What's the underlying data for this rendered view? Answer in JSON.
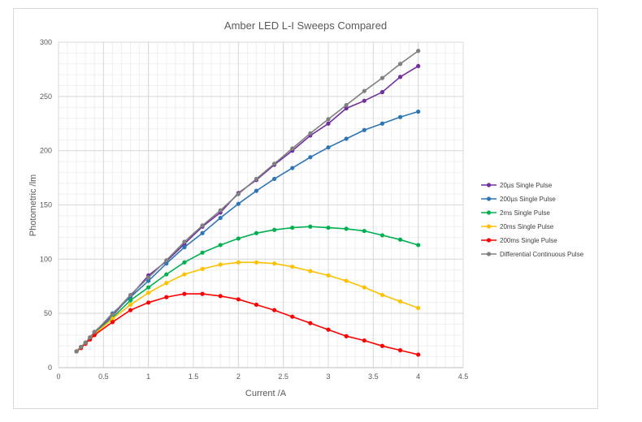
{
  "chart_data": {
    "type": "line",
    "title": "Amber LED L-I Sweeps Compared",
    "xlabel": "Current /A",
    "ylabel": "Photometric /lm",
    "xlim": [
      0,
      4.5
    ],
    "ylim": [
      0,
      300
    ],
    "x_ticks": [
      "0",
      "0.5",
      "1",
      "1.5",
      "2",
      "2.5",
      "3",
      "3.5",
      "4",
      "4.5"
    ],
    "y_ticks": [
      "0",
      "50",
      "100",
      "150",
      "200",
      "250",
      "300"
    ],
    "grid": true,
    "legend_position": "right",
    "series": [
      {
        "name": "20µs Single Pulse",
        "color": "#7030a0",
        "x": [
          0.2,
          0.25,
          0.3,
          0.35,
          0.4,
          0.6,
          0.8,
          1.0,
          1.2,
          1.4,
          1.6,
          1.8,
          2.0,
          2.2,
          2.4,
          2.6,
          2.8,
          3.0,
          3.2,
          3.4,
          3.6,
          3.8,
          4.0
        ],
        "y": [
          15,
          19,
          23,
          27,
          32,
          48,
          66,
          85,
          98,
          114,
          130,
          143,
          161,
          173,
          187,
          200,
          214,
          225,
          239,
          246,
          254,
          268,
          278
        ]
      },
      {
        "name": "200µs Single Pulse",
        "color": "#2e75b6",
        "x": [
          0.2,
          0.25,
          0.3,
          0.35,
          0.4,
          0.6,
          0.8,
          1.0,
          1.2,
          1.4,
          1.6,
          1.8,
          2.0,
          2.2,
          2.4,
          2.6,
          2.8,
          3.0,
          3.2,
          3.4,
          3.6,
          3.8,
          4.0
        ],
        "y": [
          15,
          19,
          23,
          27,
          32,
          50,
          65,
          80,
          96,
          111,
          124,
          138,
          151,
          163,
          174,
          184,
          194,
          203,
          211,
          219,
          225,
          231,
          236
        ]
      },
      {
        "name": "2ms Single Pulse",
        "color": "#00b050",
        "x": [
          0.2,
          0.25,
          0.3,
          0.35,
          0.4,
          0.6,
          0.8,
          1.0,
          1.2,
          1.4,
          1.6,
          1.8,
          2.0,
          2.2,
          2.4,
          2.6,
          2.8,
          3.0,
          3.2,
          3.4,
          3.6,
          3.8,
          4.0
        ],
        "y": [
          15,
          19,
          23,
          27,
          31,
          46,
          62,
          74,
          86,
          97,
          106,
          113,
          119,
          124,
          127,
          129,
          130,
          129,
          128,
          126,
          122,
          118,
          113
        ]
      },
      {
        "name": "20ms Single Pulse",
        "color": "#ffc000",
        "x": [
          0.2,
          0.25,
          0.3,
          0.35,
          0.4,
          0.6,
          0.8,
          1.0,
          1.2,
          1.4,
          1.6,
          1.8,
          2.0,
          2.2,
          2.4,
          2.6,
          2.8,
          3.0,
          3.2,
          3.4,
          3.6,
          3.8,
          4.0
        ],
        "y": [
          15,
          19,
          23,
          27,
          31,
          45,
          58,
          69,
          78,
          86,
          91,
          95,
          97,
          97,
          96,
          93,
          89,
          85,
          80,
          74,
          67,
          61,
          55
        ]
      },
      {
        "name": "200ms Single Pulse",
        "color": "#ff0000",
        "x": [
          0.2,
          0.25,
          0.3,
          0.35,
          0.4,
          0.6,
          0.8,
          1.0,
          1.2,
          1.4,
          1.6,
          1.8,
          2.0,
          2.2,
          2.4,
          2.6,
          2.8,
          3.0,
          3.2,
          3.4,
          3.6,
          3.8,
          4.0
        ],
        "y": [
          15,
          18,
          22,
          26,
          30,
          42,
          53,
          60,
          65,
          68,
          68,
          66,
          63,
          58,
          53,
          47,
          41,
          35,
          29,
          25,
          20,
          16,
          12
        ]
      },
      {
        "name": "Differential Continuous Pulse",
        "color": "#808080",
        "x": [
          0.2,
          0.25,
          0.3,
          0.35,
          0.4,
          0.6,
          0.8,
          1.0,
          1.2,
          1.4,
          1.6,
          1.8,
          2.0,
          2.2,
          2.4,
          2.6,
          2.8,
          3.0,
          3.2,
          3.4,
          3.6,
          3.8,
          4.0
        ],
        "y": [
          15,
          19,
          23,
          28,
          33,
          49,
          67,
          83,
          99,
          116,
          131,
          145,
          160,
          174,
          188,
          202,
          216,
          229,
          242,
          255,
          267,
          280,
          292
        ]
      }
    ]
  }
}
